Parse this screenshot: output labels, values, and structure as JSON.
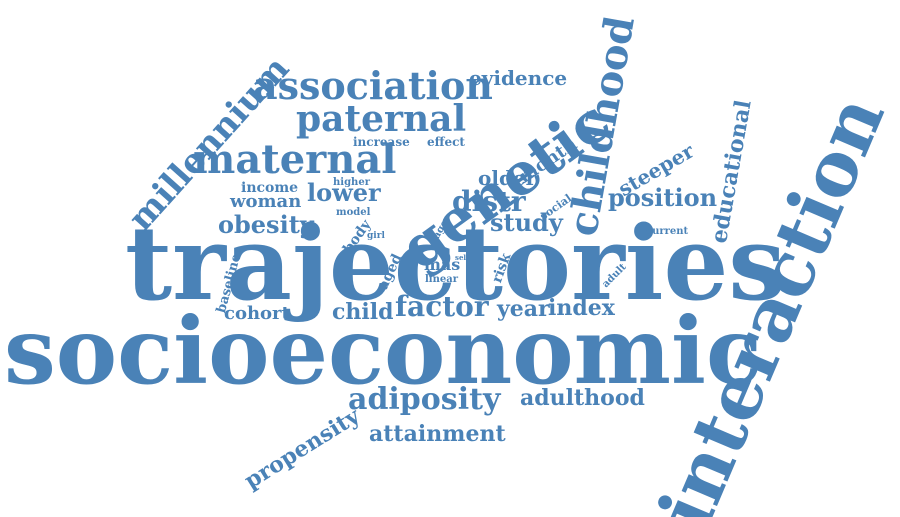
{
  "cloud": {
    "text_color": "#4a82b7",
    "words": [
      "trajectories",
      "socioeconomic",
      "interaction",
      "genetic",
      "childhood",
      "maternal",
      "paternal",
      "association",
      "millennium",
      "adiposity",
      "factor",
      "position",
      "educational",
      "obesity",
      "study",
      "distr",
      "older",
      "lower",
      "woman",
      "income",
      "evidence",
      "steeper",
      "month",
      "child",
      "cohort",
      "year",
      "index",
      "propensity",
      "attainment",
      "adulthood",
      "increase",
      "effect",
      "higher",
      "model",
      "body",
      "age",
      "social",
      "girl",
      "mas",
      "aged",
      "risk",
      "linear",
      "self",
      "baseline",
      "current",
      "adult"
    ]
  }
}
